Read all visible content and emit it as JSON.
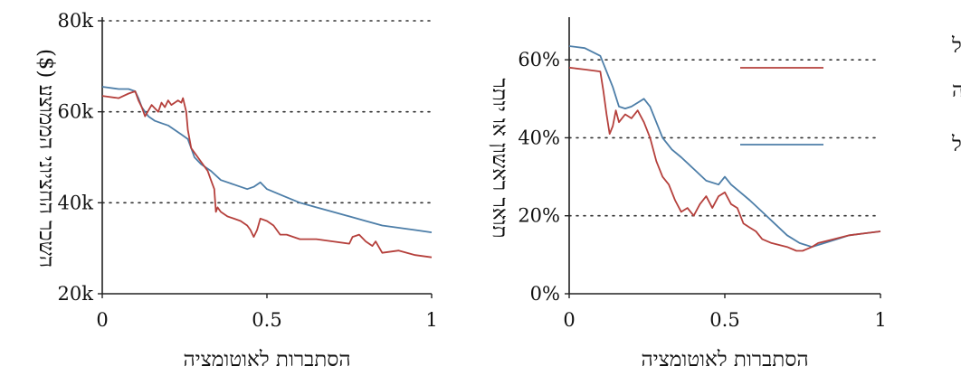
{
  "chart_data": [
    {
      "type": "line",
      "xlabel": "הסתברות לאוטומציה",
      "ylabel": "השכר החציוני הממוצע ($)",
      "xlim": [
        0,
        1
      ],
      "ylim": [
        20000,
        80000
      ],
      "x_ticks": [
        "0",
        "0.5",
        "1"
      ],
      "y_ticks": [
        "20k",
        "40k",
        "60k",
        "80k"
      ],
      "grid": "dotted horizontal",
      "series": [
        {
          "color": "#b5403c",
          "x": [
            0,
            0.05,
            0.08,
            0.1,
            0.11,
            0.12,
            0.13,
            0.15,
            0.17,
            0.18,
            0.19,
            0.2,
            0.21,
            0.22,
            0.23,
            0.24,
            0.245,
            0.25,
            0.255,
            0.26,
            0.27,
            0.3,
            0.32,
            0.33,
            0.34,
            0.345,
            0.35,
            0.36,
            0.38,
            0.4,
            0.42,
            0.44,
            0.45,
            0.46,
            0.47,
            0.48,
            0.5,
            0.52,
            0.54,
            0.56,
            0.58,
            0.6,
            0.65,
            0.7,
            0.75,
            0.76,
            0.78,
            0.8,
            0.82,
            0.83,
            0.85,
            0.9,
            0.95,
            1.0
          ],
          "values": [
            63500,
            63000,
            64000,
            64500,
            62500,
            61000,
            59000,
            61500,
            60000,
            62000,
            61000,
            62500,
            61500,
            62000,
            62500,
            62000,
            63000,
            61500,
            60000,
            56000,
            52000,
            49000,
            47000,
            45000,
            43000,
            38000,
            39000,
            38000,
            37000,
            36500,
            36000,
            35000,
            34000,
            32500,
            34000,
            36500,
            36000,
            35000,
            33000,
            33000,
            32500,
            32000,
            32000,
            31500,
            31000,
            32500,
            33000,
            31500,
            30500,
            31500,
            29000,
            29500,
            28500,
            28000
          ]
        },
        {
          "color": "#4d7ea8",
          "x": [
            0,
            0.05,
            0.08,
            0.1,
            0.11,
            0.12,
            0.14,
            0.16,
            0.18,
            0.2,
            0.22,
            0.24,
            0.26,
            0.27,
            0.28,
            0.3,
            0.33,
            0.36,
            0.4,
            0.44,
            0.46,
            0.48,
            0.5,
            0.55,
            0.6,
            0.65,
            0.7,
            0.75,
            0.8,
            0.85,
            0.9,
            0.95,
            1.0
          ],
          "values": [
            65500,
            65000,
            65000,
            64500,
            63000,
            61000,
            59000,
            58000,
            57500,
            57000,
            56000,
            55000,
            54000,
            52000,
            50000,
            48500,
            47000,
            45000,
            44000,
            43000,
            43500,
            44500,
            43000,
            41500,
            40000,
            39000,
            38000,
            37000,
            36000,
            35000,
            34500,
            34000,
            33500
          ]
        }
      ]
    },
    {
      "type": "line",
      "xlabel": "הסתברות לאוטומציה",
      "ylabel": "תואר ראשון או יותר",
      "xlim": [
        0,
        1
      ],
      "ylim": [
        0,
        70
      ],
      "x_ticks": [
        "0",
        "0.5",
        "1"
      ],
      "y_ticks": [
        "0%",
        "20%",
        "40%",
        "60%"
      ],
      "grid": "dotted horizontal",
      "legend_position": "top-right",
      "series": [
        {
          "name": "ממוצע משוקלל לפי תעסוקה",
          "color": "#b5403c",
          "x": [
            0,
            0.05,
            0.1,
            0.11,
            0.12,
            0.13,
            0.14,
            0.15,
            0.16,
            0.18,
            0.2,
            0.22,
            0.24,
            0.26,
            0.28,
            0.3,
            0.32,
            0.34,
            0.36,
            0.38,
            0.4,
            0.42,
            0.44,
            0.46,
            0.48,
            0.5,
            0.52,
            0.54,
            0.56,
            0.58,
            0.6,
            0.62,
            0.65,
            0.7,
            0.73,
            0.75,
            0.78,
            0.8,
            0.85,
            0.9,
            0.95,
            1.0
          ],
          "values": [
            58,
            57.5,
            57,
            52,
            46,
            41,
            43,
            47,
            44,
            46,
            45,
            47,
            44,
            40,
            34,
            30,
            28,
            24,
            21,
            22,
            20,
            23,
            25,
            22,
            25,
            26,
            23,
            22,
            18,
            17,
            16,
            14,
            13,
            12,
            11,
            11,
            12,
            13,
            14,
            15,
            15.5,
            16
          ]
        },
        {
          "name": "לא משוקלל",
          "color": "#4d7ea8",
          "x": [
            0,
            0.05,
            0.1,
            0.12,
            0.14,
            0.16,
            0.18,
            0.2,
            0.22,
            0.24,
            0.26,
            0.28,
            0.3,
            0.33,
            0.36,
            0.4,
            0.44,
            0.48,
            0.5,
            0.52,
            0.55,
            0.58,
            0.62,
            0.66,
            0.7,
            0.74,
            0.78,
            0.82,
            0.86,
            0.9,
            0.95,
            1.0
          ],
          "values": [
            63.5,
            63,
            61,
            57,
            53,
            48,
            47.5,
            48,
            49,
            50,
            48,
            44,
            40,
            37,
            35,
            32,
            29,
            28,
            30,
            28,
            26,
            24,
            21,
            18,
            15,
            13,
            12,
            13,
            14,
            15,
            15.5,
            16
          ]
        }
      ]
    }
  ]
}
